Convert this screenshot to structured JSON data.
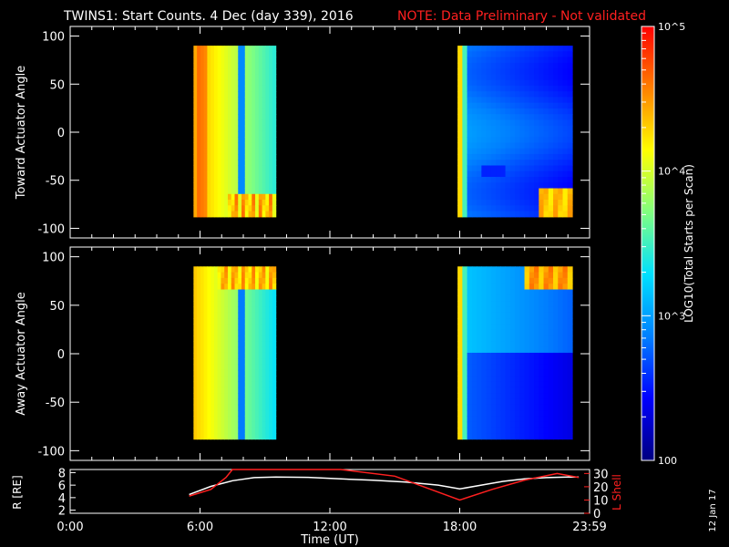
{
  "header": {
    "title": "TWINS1: Start Counts.  4 Dec (day 339), 2016",
    "note": "NOTE: Data Preliminary - Not validated"
  },
  "footer": {
    "date_stamp": "12 Jan 17"
  },
  "colors": {
    "background": "#000000",
    "axes": "#ffffff",
    "note": "#ff2020",
    "lshell": "#ff2020",
    "radius": "#ffffff"
  },
  "colorbar": {
    "label": "LOG10(Total Starts per Scan)",
    "scale": "log",
    "range": [
      100,
      100000
    ],
    "major_ticks": [
      "10^5",
      "10^4",
      "10^3",
      "100"
    ],
    "colormap": [
      "#000080",
      "#0000ff",
      "#0080ff",
      "#00e0ff",
      "#80ff80",
      "#ffff00",
      "#ff8000",
      "#ff0000"
    ]
  },
  "chart_data": [
    {
      "type": "heatmap",
      "panel": "top",
      "ylabel": "Toward Actuator Angle",
      "xlim": [
        0,
        24
      ],
      "ylim": [
        -110,
        110
      ],
      "yticks": [
        100,
        50,
        0,
        -50,
        -100
      ],
      "angle_range": [
        -88,
        90
      ],
      "x_units": "hours UT",
      "value_scale": "log10 counts",
      "passes": [
        {
          "t_start": 5.7,
          "t_end": 9.5
        },
        {
          "t_start": 17.9,
          "t_end": 23.2
        }
      ]
    },
    {
      "type": "heatmap",
      "panel": "middle",
      "ylabel": "Away Actuator Angle",
      "xlim": [
        0,
        24
      ],
      "ylim": [
        -110,
        110
      ],
      "yticks": [
        100,
        50,
        0,
        -50,
        -100
      ],
      "angle_range": [
        -88,
        90
      ],
      "x_units": "hours UT",
      "value_scale": "log10 counts",
      "passes": [
        {
          "t_start": 5.7,
          "t_end": 9.5
        },
        {
          "t_start": 17.9,
          "t_end": 23.2
        }
      ]
    },
    {
      "type": "line",
      "panel": "bottom",
      "ylabel": "R [RE]",
      "y2label": "L Shell",
      "xlabel": "Time (UT)",
      "xlim": [
        0,
        24
      ],
      "ylim": [
        1.5,
        8.5
      ],
      "y2lim": [
        0,
        33
      ],
      "xticks": [
        "0:00",
        "6:00",
        "12:00",
        "18:00",
        "23:59"
      ],
      "xtick_values": [
        0,
        6,
        12,
        18,
        24
      ],
      "yticks": [
        2,
        4,
        6,
        8
      ],
      "y2ticks": [
        0,
        10,
        20,
        30
      ],
      "series": [
        {
          "name": "R",
          "axis": "left",
          "x": [
            5.5,
            6.5,
            7.5,
            8.5,
            9.5,
            11,
            12.5,
            14,
            15.5,
            17,
            18,
            19,
            20,
            21,
            22,
            23,
            23.5
          ],
          "values": [
            4.5,
            5.8,
            6.7,
            7.2,
            7.3,
            7.25,
            7.0,
            6.8,
            6.5,
            6.0,
            5.4,
            6.0,
            6.6,
            7.0,
            7.2,
            7.3,
            7.3
          ]
        },
        {
          "name": "L",
          "axis": "right",
          "x": [
            5.5,
            6.5,
            7.2,
            7.5,
            12.5,
            15,
            18,
            19.5,
            21,
            22.5,
            23.5
          ],
          "values": [
            13,
            18,
            27,
            33,
            33,
            28,
            10,
            18,
            25,
            30,
            27
          ]
        }
      ]
    }
  ]
}
